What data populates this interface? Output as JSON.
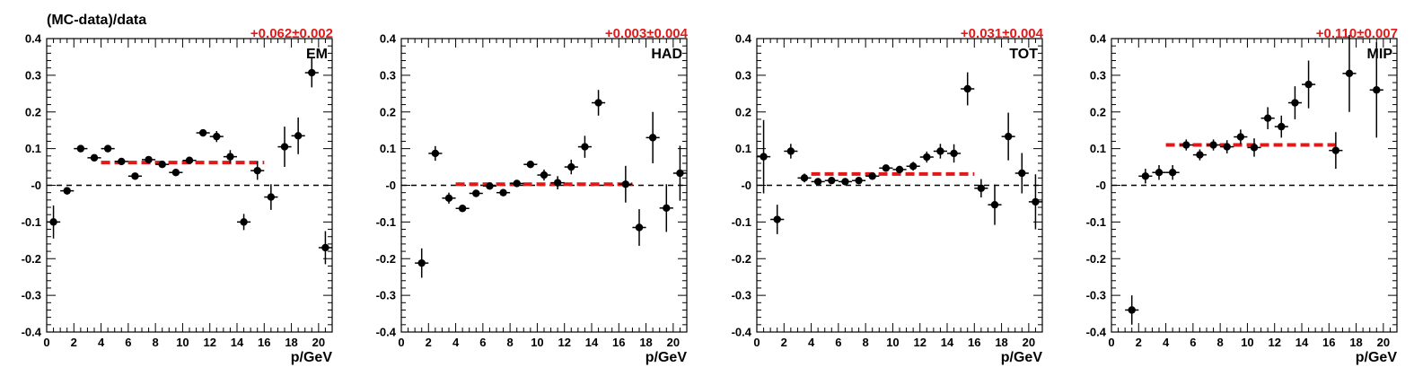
{
  "figure": {
    "ylabel": "(MC-data)/data"
  },
  "chart_data": [
    {
      "type": "scatter",
      "panel_label": "EM",
      "fit_label": "+0.062±0.002",
      "xlabel": "p/GeV",
      "xlim": [
        0,
        21
      ],
      "ylim": [
        -0.4,
        0.4
      ],
      "x_ticks": [
        0,
        2,
        4,
        6,
        8,
        10,
        12,
        14,
        16,
        18,
        20
      ],
      "y_ticks": [
        -0.4,
        -0.3,
        -0.2,
        -0.1,
        0,
        0.1,
        0.2,
        0.3,
        0.4
      ],
      "y_tick_labels": [
        "-0.4",
        "-0.3",
        "-0.2",
        "-0.1",
        "-0",
        "0.1",
        "0.2",
        "0.3",
        "0.4"
      ],
      "fit": {
        "value": 0.062,
        "error": 0.002,
        "x_range": [
          4,
          16
        ]
      },
      "points": [
        {
          "x": 0.5,
          "y": -0.1,
          "err": 0.045
        },
        {
          "x": 1.5,
          "y": -0.015,
          "err": 0.01
        },
        {
          "x": 2.5,
          "y": 0.1,
          "err": 0.008
        },
        {
          "x": 3.5,
          "y": 0.075,
          "err": 0.008
        },
        {
          "x": 4.5,
          "y": 0.1,
          "err": 0.008
        },
        {
          "x": 5.5,
          "y": 0.065,
          "err": 0.008
        },
        {
          "x": 6.5,
          "y": 0.025,
          "err": 0.008
        },
        {
          "x": 7.5,
          "y": 0.07,
          "err": 0.008
        },
        {
          "x": 8.5,
          "y": 0.057,
          "err": 0.008
        },
        {
          "x": 9.5,
          "y": 0.035,
          "err": 0.01
        },
        {
          "x": 10.5,
          "y": 0.068,
          "err": 0.008
        },
        {
          "x": 11.5,
          "y": 0.143,
          "err": 0.01
        },
        {
          "x": 12.5,
          "y": 0.133,
          "err": 0.015
        },
        {
          "x": 13.5,
          "y": 0.078,
          "err": 0.018
        },
        {
          "x": 14.5,
          "y": -0.1,
          "err": 0.022
        },
        {
          "x": 15.5,
          "y": 0.04,
          "err": 0.025
        },
        {
          "x": 16.5,
          "y": -0.032,
          "err": 0.035
        },
        {
          "x": 17.5,
          "y": 0.105,
          "err": 0.055
        },
        {
          "x": 18.5,
          "y": 0.135,
          "err": 0.05
        },
        {
          "x": 19.5,
          "y": 0.307,
          "err": 0.04
        },
        {
          "x": 20.5,
          "y": -0.17,
          "err": 0.045
        }
      ]
    },
    {
      "type": "scatter",
      "panel_label": "HAD",
      "fit_label": "+0.003±0.004",
      "xlabel": "p/GeV",
      "xlim": [
        0,
        21
      ],
      "ylim": [
        -0.4,
        0.4
      ],
      "x_ticks": [
        0,
        2,
        4,
        6,
        8,
        10,
        12,
        14,
        16,
        18,
        20
      ],
      "y_ticks": [
        -0.4,
        -0.3,
        -0.2,
        -0.1,
        0,
        0.1,
        0.2,
        0.3,
        0.4
      ],
      "y_tick_labels": [
        "-0.4",
        "-0.3",
        "-0.2",
        "-0.1",
        "-0",
        "0.1",
        "0.2",
        "0.3",
        "0.4"
      ],
      "fit": {
        "value": 0.003,
        "error": 0.004,
        "x_range": [
          4,
          17
        ]
      },
      "points": [
        {
          "x": 1.5,
          "y": -0.212,
          "err": 0.04
        },
        {
          "x": 2.5,
          "y": 0.087,
          "err": 0.02
        },
        {
          "x": 3.5,
          "y": -0.035,
          "err": 0.015
        },
        {
          "x": 4.5,
          "y": -0.063,
          "err": 0.008
        },
        {
          "x": 5.5,
          "y": -0.022,
          "err": 0.008
        },
        {
          "x": 6.5,
          "y": -0.002,
          "err": 0.008
        },
        {
          "x": 7.5,
          "y": -0.02,
          "err": 0.008
        },
        {
          "x": 8.5,
          "y": 0.005,
          "err": 0.008
        },
        {
          "x": 9.5,
          "y": 0.057,
          "err": 0.01
        },
        {
          "x": 10.5,
          "y": 0.028,
          "err": 0.015
        },
        {
          "x": 11.5,
          "y": 0.007,
          "err": 0.018
        },
        {
          "x": 12.5,
          "y": 0.05,
          "err": 0.02
        },
        {
          "x": 13.5,
          "y": 0.105,
          "err": 0.03
        },
        {
          "x": 14.5,
          "y": 0.225,
          "err": 0.035
        },
        {
          "x": 16.5,
          "y": 0.003,
          "err": 0.05
        },
        {
          "x": 17.5,
          "y": -0.115,
          "err": 0.05
        },
        {
          "x": 18.5,
          "y": 0.13,
          "err": 0.07
        },
        {
          "x": 19.5,
          "y": -0.062,
          "err": 0.065
        },
        {
          "x": 20.5,
          "y": 0.033,
          "err": 0.075
        }
      ]
    },
    {
      "type": "scatter",
      "panel_label": "TOT",
      "fit_label": "+0.031±0.004",
      "xlabel": "p/GeV",
      "xlim": [
        0,
        21
      ],
      "ylim": [
        -0.4,
        0.4
      ],
      "x_ticks": [
        0,
        2,
        4,
        6,
        8,
        10,
        12,
        14,
        16,
        18,
        20
      ],
      "y_ticks": [
        -0.4,
        -0.3,
        -0.2,
        -0.1,
        0,
        0.1,
        0.2,
        0.3,
        0.4
      ],
      "y_tick_labels": [
        "-0.4",
        "-0.3",
        "-0.2",
        "-0.1",
        "-0",
        "0.1",
        "0.2",
        "0.3",
        "0.4"
      ],
      "fit": {
        "value": 0.031,
        "error": 0.004,
        "x_range": [
          4,
          16
        ]
      },
      "points": [
        {
          "x": 0.5,
          "y": 0.078,
          "err": 0.1
        },
        {
          "x": 1.5,
          "y": -0.093,
          "err": 0.04
        },
        {
          "x": 2.5,
          "y": 0.093,
          "err": 0.02
        },
        {
          "x": 3.5,
          "y": 0.02,
          "err": 0.012
        },
        {
          "x": 4.5,
          "y": 0.01,
          "err": 0.008
        },
        {
          "x": 5.5,
          "y": 0.013,
          "err": 0.008
        },
        {
          "x": 6.5,
          "y": 0.01,
          "err": 0.008
        },
        {
          "x": 7.5,
          "y": 0.013,
          "err": 0.008
        },
        {
          "x": 8.5,
          "y": 0.025,
          "err": 0.008
        },
        {
          "x": 9.5,
          "y": 0.047,
          "err": 0.008
        },
        {
          "x": 10.5,
          "y": 0.043,
          "err": 0.01
        },
        {
          "x": 11.5,
          "y": 0.052,
          "err": 0.012
        },
        {
          "x": 12.5,
          "y": 0.077,
          "err": 0.015
        },
        {
          "x": 13.5,
          "y": 0.093,
          "err": 0.02
        },
        {
          "x": 14.5,
          "y": 0.087,
          "err": 0.025
        },
        {
          "x": 15.5,
          "y": 0.263,
          "err": 0.045
        },
        {
          "x": 16.5,
          "y": -0.008,
          "err": 0.025
        },
        {
          "x": 17.5,
          "y": -0.053,
          "err": 0.055
        },
        {
          "x": 18.5,
          "y": 0.133,
          "err": 0.065
        },
        {
          "x": 19.5,
          "y": 0.033,
          "err": 0.055
        },
        {
          "x": 20.5,
          "y": -0.045,
          "err": 0.075
        }
      ]
    },
    {
      "type": "scatter",
      "panel_label": "MIP",
      "fit_label": "+0.110±0.007",
      "xlabel": "p/GeV",
      "xlim": [
        0,
        21
      ],
      "ylim": [
        -0.4,
        0.4
      ],
      "x_ticks": [
        0,
        2,
        4,
        6,
        8,
        10,
        12,
        14,
        16,
        18,
        20
      ],
      "y_ticks": [
        -0.4,
        -0.3,
        -0.2,
        -0.1,
        0,
        0.1,
        0.2,
        0.3,
        0.4
      ],
      "y_tick_labels": [
        "-0.4",
        "-0.3",
        "-0.2",
        "-0.1",
        "-0",
        "0.1",
        "0.2",
        "0.3",
        "0.4"
      ],
      "fit": {
        "value": 0.11,
        "error": 0.007,
        "x_range": [
          4,
          16.5
        ]
      },
      "points": [
        {
          "x": 1.5,
          "y": -0.34,
          "err": 0.04
        },
        {
          "x": 2.5,
          "y": 0.025,
          "err": 0.02
        },
        {
          "x": 3.5,
          "y": 0.035,
          "err": 0.02
        },
        {
          "x": 4.5,
          "y": 0.035,
          "err": 0.02
        },
        {
          "x": 5.5,
          "y": 0.11,
          "err": 0.015
        },
        {
          "x": 6.5,
          "y": 0.083,
          "err": 0.015
        },
        {
          "x": 7.5,
          "y": 0.11,
          "err": 0.015
        },
        {
          "x": 8.5,
          "y": 0.105,
          "err": 0.018
        },
        {
          "x": 9.5,
          "y": 0.132,
          "err": 0.02
        },
        {
          "x": 10.5,
          "y": 0.103,
          "err": 0.025
        },
        {
          "x": 11.5,
          "y": 0.183,
          "err": 0.03
        },
        {
          "x": 12.5,
          "y": 0.16,
          "err": 0.03
        },
        {
          "x": 13.5,
          "y": 0.225,
          "err": 0.045
        },
        {
          "x": 14.5,
          "y": 0.275,
          "err": 0.065
        },
        {
          "x": 16.5,
          "y": 0.095,
          "err": 0.05
        },
        {
          "x": 17.5,
          "y": 0.305,
          "err": 0.105
        },
        {
          "x": 19.5,
          "y": 0.26,
          "err": 0.13
        }
      ]
    }
  ]
}
